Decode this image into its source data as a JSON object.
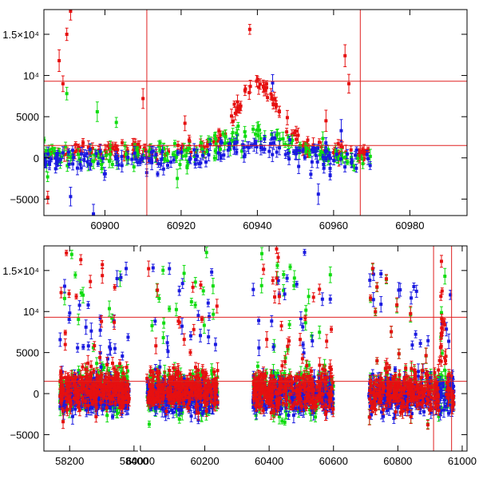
{
  "chart_data": [
    {
      "type": "scatter",
      "title": "",
      "xlabel": "",
      "ylabel": "",
      "xlim": [
        60884,
        60995
      ],
      "ylim": [
        -7000,
        18000
      ],
      "x_ticks": [
        {
          "value": 60900,
          "label": "60900"
        },
        {
          "value": 60920,
          "label": "60920"
        },
        {
          "value": 60940,
          "label": "60940"
        },
        {
          "value": 60960,
          "label": "60960"
        },
        {
          "value": 60980,
          "label": "60980"
        }
      ],
      "y_ticks": [
        {
          "value": -5000,
          "label": "−5000"
        },
        {
          "value": 0,
          "label": "0"
        },
        {
          "value": 5000,
          "label": "5000"
        },
        {
          "value": 10000,
          "label": "10⁴"
        },
        {
          "value": 15000,
          "label": "1.5×10⁴"
        }
      ],
      "reference_lines": {
        "horizontal": [
          9300,
          1500
        ],
        "vertical": [
          60911,
          60967
        ],
        "color": "#e02020"
      },
      "series": [
        {
          "name": "red",
          "color": "#e61010",
          "x_range": [
            60884,
            60970
          ],
          "baseline": 900,
          "noise": 800,
          "peak": {
            "center": 60940,
            "height": 8200,
            "width": 5.5
          },
          "outliers": [
            [
              60888,
              11800
            ],
            [
              60890,
              15000
            ],
            [
              60891,
              17800
            ],
            [
              60889,
              9000
            ],
            [
              60885,
              -4800
            ],
            [
              60938,
              15600
            ],
            [
              60963,
              12400
            ],
            [
              60964,
              9000
            ],
            [
              60910,
              7200
            ],
            [
              60921,
              4200
            ],
            [
              60958,
              4500
            ]
          ]
        },
        {
          "name": "green",
          "color": "#10dc10",
          "x_range": [
            60884,
            60970
          ],
          "baseline": 200,
          "noise": 1200,
          "peak": {
            "center": 60940,
            "height": 3200,
            "width": 7
          },
          "outliers": [
            [
              60890,
              7800
            ],
            [
              60898,
              5600
            ],
            [
              60903,
              4300
            ],
            [
              60919,
              -2500
            ]
          ]
        },
        {
          "name": "blue",
          "color": "#1a1ae0",
          "x_range": [
            60884,
            60970
          ],
          "baseline": -200,
          "noise": 1300,
          "peak": {
            "center": 60940,
            "height": 2000,
            "width": 8
          },
          "outliers": [
            [
              60891,
              -4700
            ],
            [
              60897,
              -6800
            ],
            [
              60956,
              -4400
            ],
            [
              60944,
              9100
            ],
            [
              60962,
              3300
            ]
          ]
        }
      ]
    },
    {
      "type": "scatter",
      "title": "",
      "xlabel": "",
      "ylabel": "",
      "xlim": [
        58120,
        61015
      ],
      "ylim": [
        -7000,
        18000
      ],
      "x_ticks": [
        {
          "value": 58200,
          "label": "58200"
        },
        {
          "value": 58400,
          "label": "58400"
        },
        {
          "value": 60000,
          "label": "60000"
        },
        {
          "value": 60200,
          "label": "60200"
        },
        {
          "value": 60400,
          "label": "60400"
        },
        {
          "value": 60600,
          "label": "60600"
        },
        {
          "value": 60800,
          "label": "60800"
        },
        {
          "value": 61000,
          "label": "61000"
        }
      ],
      "y_ticks": [
        {
          "value": -5000,
          "label": "−5000"
        },
        {
          "value": 0,
          "label": "0"
        },
        {
          "value": 5000,
          "label": "5000"
        },
        {
          "value": 10000,
          "label": "10⁴"
        },
        {
          "value": 15000,
          "label": "1.5×10⁴"
        }
      ],
      "x_break": [
        58410,
        59990
      ],
      "seasons": [
        [
          58170,
          58385
        ],
        [
          60020,
          60240
        ],
        [
          60350,
          60600
        ],
        [
          60710,
          60975
        ]
      ],
      "reference_lines": {
        "horizontal": [
          9300,
          1500
        ],
        "vertical": [
          60911,
          60967
        ],
        "color": "#e02020"
      },
      "series": [
        {
          "name": "green",
          "color": "#10dc10",
          "baseline": 300,
          "noise": 2200
        },
        {
          "name": "blue",
          "color": "#1a1ae0",
          "baseline": -300,
          "noise": 1800
        },
        {
          "name": "red",
          "color": "#e61010",
          "baseline": 400,
          "noise": 2300,
          "peak": {
            "center": 60940,
            "height": 8200,
            "width": 6
          }
        }
      ]
    }
  ]
}
